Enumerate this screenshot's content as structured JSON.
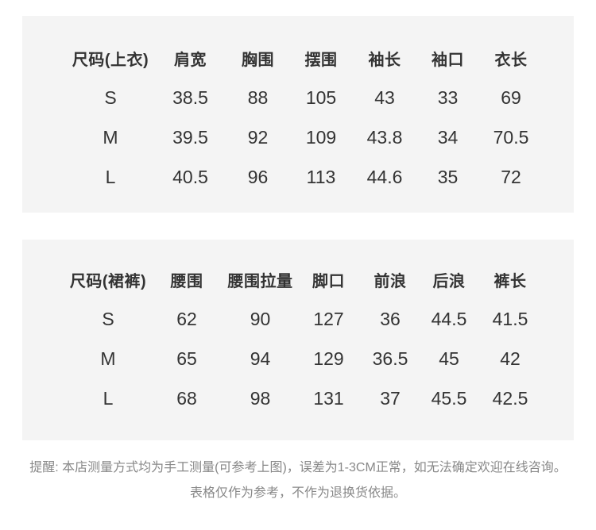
{
  "page": {
    "background_color": "#ffffff",
    "panel_color": "#f4f4f4",
    "text_color": "#333333",
    "note_color": "#888888"
  },
  "tables": [
    {
      "title": "尺码(上衣)",
      "headers": [
        "尺码(上衣)",
        "肩宽",
        "胸围",
        "摆围",
        "袖长",
        "袖口",
        "衣长"
      ],
      "rows": [
        [
          "S",
          "38.5",
          "88",
          "105",
          "43",
          "33",
          "69"
        ],
        [
          "M",
          "39.5",
          "92",
          "109",
          "43.8",
          "34",
          "70.5"
        ],
        [
          "L",
          "40.5",
          "96",
          "113",
          "44.6",
          "35",
          "72"
        ]
      ]
    },
    {
      "title": "尺码(裙裤)",
      "headers": [
        "尺码(裙裤)",
        "腰围",
        "腰围拉量",
        "脚口",
        "前浪",
        "后浪",
        "裤长"
      ],
      "rows": [
        [
          "S",
          "62",
          "90",
          "127",
          "36",
          "44.5",
          "41.5"
        ],
        [
          "M",
          "65",
          "94",
          "129",
          "36.5",
          "45",
          "42"
        ],
        [
          "L",
          "68",
          "98",
          "131",
          "37",
          "45.5",
          "42.5"
        ]
      ]
    }
  ],
  "note": {
    "line1": "提醒: 本店测量方式均为手工测量(可参考上图)，误差为1-3CM正常，如无法确定欢迎在线咨询。",
    "line2": "表格仅作为参考，不作为退换货依据。"
  }
}
